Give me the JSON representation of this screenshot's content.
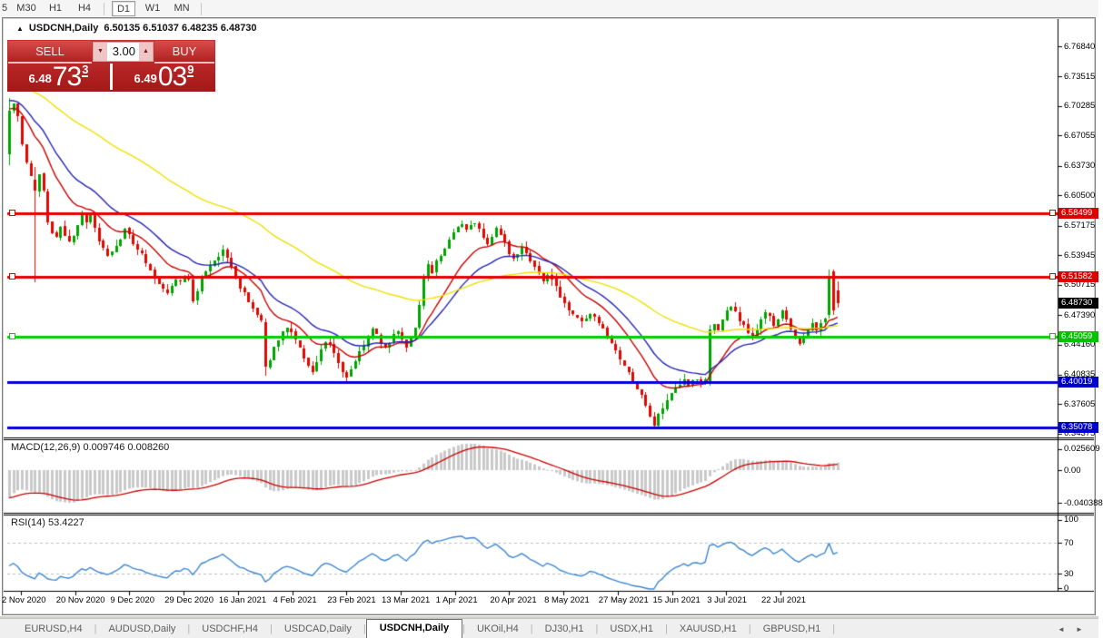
{
  "toolbar": {
    "timeframes": [
      "5",
      "M30",
      "H1",
      "H4",
      "D1",
      "W1",
      "MN"
    ],
    "active": "D1"
  },
  "chart_header": {
    "collapse_arrow": "▲",
    "symbol": "USDCNH,Daily",
    "ohlc_text": "6.50135 6.51037 6.48235 6.48730"
  },
  "order_panel": {
    "sell_label": "SELL",
    "buy_label": "BUY",
    "volume": "3.00",
    "spinner_down_icon": "▼",
    "spinner_up_icon": "▲",
    "sell_price": {
      "prefix": "6.48",
      "big": "73",
      "sup": "3"
    },
    "buy_price": {
      "prefix": "6.49",
      "big": "03",
      "sup": "9"
    }
  },
  "chart_data": {
    "type": "candlestick",
    "symbol": "USDCNH",
    "period": "Daily",
    "current_bar": {
      "open": 6.50135,
      "high": 6.51037,
      "low": 6.48235,
      "close": 6.4873
    },
    "bid": 6.4873,
    "ask": 6.4903,
    "ylim": [
      6.3397,
      6.7993
    ],
    "y_tick_labels": [
      "6.76840",
      "6.73515",
      "6.70285",
      "6.67055",
      "6.63730",
      "6.60500",
      "6.57175",
      "6.53945",
      "6.50715",
      "6.47390",
      "6.44160",
      "6.40835",
      "6.37605",
      "6.34375"
    ],
    "x_tick_labels": [
      "2 Nov 2020",
      "20 Nov 2020",
      "9 Dec 2020",
      "29 Dec 2020",
      "16 Jan 2021",
      "4 Feb 2021",
      "23 Feb 2021",
      "13 Mar 2021",
      "1 Apr 2021",
      "20 Apr 2021",
      "8 May 2021",
      "27 May 2021",
      "15 Jun 2021",
      "3 Jul 2021",
      "22 Jul 2021"
    ],
    "n_candles": 195,
    "bull_color": "#00a400",
    "bear_color": "#e00800",
    "close_anchors": [
      [
        0,
        6.698
      ],
      [
        1,
        6.707
      ],
      [
        2,
        6.69
      ],
      [
        3,
        6.66
      ],
      [
        4,
        6.64
      ],
      [
        5,
        6.625
      ],
      [
        6,
        6.61
      ],
      [
        7,
        6.628
      ],
      [
        8,
        6.61
      ],
      [
        9,
        6.578
      ],
      [
        10,
        6.565
      ],
      [
        11,
        6.558
      ],
      [
        12,
        6.572
      ],
      [
        13,
        6.56
      ],
      [
        14,
        6.552
      ],
      [
        15,
        6.562
      ],
      [
        16,
        6.572
      ],
      [
        17,
        6.582
      ],
      [
        18,
        6.575
      ],
      [
        19,
        6.584
      ],
      [
        20,
        6.57
      ],
      [
        21,
        6.556
      ],
      [
        22,
        6.545
      ],
      [
        23,
        6.54
      ],
      [
        24,
        6.542
      ],
      [
        25,
        6.548
      ],
      [
        26,
        6.556
      ],
      [
        27,
        6.57
      ],
      [
        28,
        6.562
      ],
      [
        29,
        6.552
      ],
      [
        30,
        6.548
      ],
      [
        31,
        6.54
      ],
      [
        32,
        6.532
      ],
      [
        33,
        6.524
      ],
      [
        34,
        6.516
      ],
      [
        35,
        6.51
      ],
      [
        36,
        6.503
      ],
      [
        37,
        6.498
      ],
      [
        38,
        6.506
      ],
      [
        39,
        6.514
      ],
      [
        40,
        6.51
      ],
      [
        41,
        6.518
      ],
      [
        42,
        6.512
      ],
      [
        43,
        6.488
      ],
      [
        44,
        6.502
      ],
      [
        45,
        6.515
      ],
      [
        46,
        6.52
      ],
      [
        47,
        6.526
      ],
      [
        48,
        6.532
      ],
      [
        49,
        6.538
      ],
      [
        50,
        6.544
      ],
      [
        51,
        6.536
      ],
      [
        52,
        6.526
      ],
      [
        53,
        6.515
      ],
      [
        54,
        6.505
      ],
      [
        55,
        6.497
      ],
      [
        56,
        6.49
      ],
      [
        57,
        6.482
      ],
      [
        58,
        6.473
      ],
      [
        59,
        6.468
      ],
      [
        60,
        6.417
      ],
      [
        61,
        6.424
      ],
      [
        62,
        6.438
      ],
      [
        63,
        6.448
      ],
      [
        64,
        6.456
      ],
      [
        65,
        6.462
      ],
      [
        66,
        6.455
      ],
      [
        67,
        6.446
      ],
      [
        68,
        6.438
      ],
      [
        69,
        6.428
      ],
      [
        70,
        6.418
      ],
      [
        71,
        6.412
      ],
      [
        72,
        6.424
      ],
      [
        73,
        6.436
      ],
      [
        74,
        6.444
      ],
      [
        75,
        6.44
      ],
      [
        76,
        6.432
      ],
      [
        77,
        6.422
      ],
      [
        78,
        6.412
      ],
      [
        79,
        6.406
      ],
      [
        80,
        6.414
      ],
      [
        81,
        6.424
      ],
      [
        82,
        6.434
      ],
      [
        83,
        6.442
      ],
      [
        84,
        6.45
      ],
      [
        85,
        6.458
      ],
      [
        86,
        6.452
      ],
      [
        87,
        6.444
      ],
      [
        88,
        6.436
      ],
      [
        89,
        6.444
      ],
      [
        90,
        6.452
      ],
      [
        91,
        6.458
      ],
      [
        92,
        6.448
      ],
      [
        93,
        6.438
      ],
      [
        94,
        6.45
      ],
      [
        95,
        6.462
      ],
      [
        96,
        6.482
      ],
      [
        97,
        6.514
      ],
      [
        98,
        6.53
      ],
      [
        99,
        6.522
      ],
      [
        100,
        6.532
      ],
      [
        101,
        6.54
      ],
      [
        102,
        6.548
      ],
      [
        103,
        6.556
      ],
      [
        104,
        6.562
      ],
      [
        105,
        6.568
      ],
      [
        106,
        6.574
      ],
      [
        107,
        6.566
      ],
      [
        108,
        6.572
      ],
      [
        109,
        6.576
      ],
      [
        110,
        6.568
      ],
      [
        111,
        6.56
      ],
      [
        112,
        6.553
      ],
      [
        113,
        6.56
      ],
      [
        114,
        6.568
      ],
      [
        115,
        6.562
      ],
      [
        116,
        6.552
      ],
      [
        117,
        6.543
      ],
      [
        118,
        6.536
      ],
      [
        119,
        6.543
      ],
      [
        120,
        6.55
      ],
      [
        121,
        6.543
      ],
      [
        122,
        6.535
      ],
      [
        123,
        6.527
      ],
      [
        124,
        6.519
      ],
      [
        125,
        6.513
      ],
      [
        126,
        6.518
      ],
      [
        127,
        6.511
      ],
      [
        128,
        6.503
      ],
      [
        129,
        6.495
      ],
      [
        130,
        6.487
      ],
      [
        131,
        6.48
      ],
      [
        132,
        6.474
      ],
      [
        133,
        6.47
      ],
      [
        134,
        6.466
      ],
      [
        135,
        6.47
      ],
      [
        136,
        6.474
      ],
      [
        137,
        6.47
      ],
      [
        138,
        6.464
      ],
      [
        139,
        6.457
      ],
      [
        140,
        6.449
      ],
      [
        141,
        6.441
      ],
      [
        142,
        6.433
      ],
      [
        143,
        6.425
      ],
      [
        144,
        6.417
      ],
      [
        145,
        6.409
      ],
      [
        146,
        6.401
      ],
      [
        147,
        6.393
      ],
      [
        148,
        6.385
      ],
      [
        149,
        6.374
      ],
      [
        150,
        6.362
      ],
      [
        151,
        6.354
      ],
      [
        152,
        6.363
      ],
      [
        153,
        6.372
      ],
      [
        154,
        6.38
      ],
      [
        155,
        6.386
      ],
      [
        156,
        6.392
      ],
      [
        157,
        6.397
      ],
      [
        158,
        6.401
      ],
      [
        159,
        6.396
      ],
      [
        160,
        6.4
      ],
      [
        161,
        6.404
      ],
      [
        162,
        6.398
      ],
      [
        163,
        6.403
      ],
      [
        164,
        6.458
      ],
      [
        165,
        6.465
      ],
      [
        166,
        6.458
      ],
      [
        167,
        6.468
      ],
      [
        168,
        6.478
      ],
      [
        169,
        6.484
      ],
      [
        170,
        6.477
      ],
      [
        171,
        6.469
      ],
      [
        172,
        6.461
      ],
      [
        173,
        6.454
      ],
      [
        174,
        6.45
      ],
      [
        175,
        6.46
      ],
      [
        176,
        6.469
      ],
      [
        177,
        6.477
      ],
      [
        178,
        6.471
      ],
      [
        179,
        6.463
      ],
      [
        180,
        6.47
      ],
      [
        181,
        6.477
      ],
      [
        182,
        6.469
      ],
      [
        183,
        6.459
      ],
      [
        184,
        6.45
      ],
      [
        185,
        6.443
      ],
      [
        186,
        6.451
      ],
      [
        187,
        6.459
      ],
      [
        188,
        6.466
      ],
      [
        189,
        6.459
      ],
      [
        190,
        6.465
      ],
      [
        191,
        6.472
      ],
      [
        192,
        6.5135
      ],
      [
        193,
        6.4785
      ],
      [
        194,
        6.4873
      ]
    ],
    "candle_overrides": {
      "0": [
        6.65,
        6.698,
        6.712,
        6.638
      ],
      "6": [
        6.622,
        6.61,
        6.636,
        6.51
      ],
      "60": [
        6.466,
        6.417,
        6.47,
        6.407
      ],
      "97": [
        6.484,
        6.514,
        6.519,
        6.48
      ],
      "164": [
        6.4,
        6.458,
        6.463,
        6.396
      ],
      "192": [
        6.474,
        6.5135,
        6.5235,
        6.47
      ],
      "193": [
        6.5215,
        6.4785,
        6.5235,
        6.474
      ],
      "194": [
        6.50135,
        6.4873,
        6.51037,
        6.48235
      ]
    },
    "h_lines": [
      {
        "price": 6.58499,
        "label": "6.58499",
        "color": "#e60000",
        "badge_bg": "#dd0000",
        "markers": true
      },
      {
        "price": 6.51582,
        "label": "6.51582",
        "color": "#e60000",
        "badge_bg": "#dd0000",
        "markers": true
      },
      {
        "price": 6.45059,
        "label": "6.45059",
        "color": "#00d000",
        "badge_bg": "#00c300",
        "markers": true
      },
      {
        "price": 6.40019,
        "label": "6.40019",
        "color": "#0000dd",
        "badge_bg": "#0000cc",
        "markers": false
      },
      {
        "price": 6.35078,
        "label": "6.35078",
        "color": "#0000dd",
        "badge_bg": "#0000cc",
        "markers": false
      }
    ],
    "current_price_badge": {
      "text": "6.48730",
      "price": 6.4873,
      "bg": "#000000"
    },
    "moving_averages": [
      {
        "color": "#cc0000",
        "period": 14,
        "seed": 6.7
      },
      {
        "color": "#2525b5",
        "period": 24,
        "seed": 6.71
      },
      {
        "color": "#efe000",
        "period": 75,
        "seed": 6.73
      }
    ],
    "macd": {
      "label": "MACD(12,26,9) 0.009746 0.008260",
      "params": [
        12,
        26,
        9
      ],
      "values": [
        0.009746,
        0.00826
      ],
      "axis_labels": [
        "0.025609",
        "0.00",
        "-0.040388"
      ],
      "axis_values": [
        0.025609,
        0,
        -0.040388
      ],
      "bar_color": "#c9c9c9",
      "signal_color": "#cc0000"
    },
    "rsi": {
      "label": "RSI(14) 53.4227",
      "period": 14,
      "value": 53.4227,
      "axis_labels": [
        "100",
        "70",
        "30",
        "0"
      ],
      "axis_values": [
        100,
        70,
        30,
        0
      ],
      "levels": [
        70,
        30
      ],
      "line_color": "#3d87d2"
    }
  },
  "tabs": {
    "items": [
      "EURUSD,H4",
      "AUDUSD,Daily",
      "USDCHF,H4",
      "USDCAD,Daily",
      "USDCNH,Daily",
      "UKOil,H4",
      "DJ30,H1",
      "USDX,H1",
      "XAUUSD,H1",
      "GBPUSD,H1"
    ],
    "active_index": 4,
    "scroll_left_icon": "◄",
    "scroll_right_icon": "►"
  }
}
